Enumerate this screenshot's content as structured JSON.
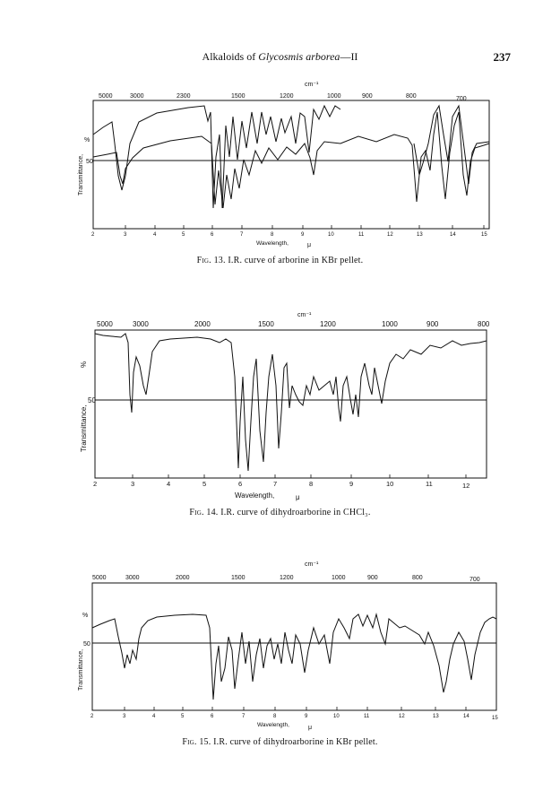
{
  "header": {
    "running_title_prefix": "Alkaloids of ",
    "running_title_italic": "Glycosmis arborea",
    "running_title_suffix": "—II",
    "page_number": "237"
  },
  "figures": [
    {
      "caption_label": "Fig. 13.",
      "caption_text": "I.R. curve of arborine in KBr pellet.",
      "top_unit": "cm⁻¹",
      "wavenumber_ticks": [
        "5000",
        "3000",
        "2300",
        "1500",
        "1200",
        "1000",
        "900",
        "800",
        "700"
      ],
      "wavelength_ticks": [
        "2",
        "3",
        "4",
        "5",
        "6",
        "7",
        "8",
        "9",
        "10",
        "11",
        "12",
        "13",
        "14",
        "15"
      ],
      "y_label": "Transmittance,",
      "y_unit": "%",
      "fifty_label": "50",
      "x_label": "Wavelength,",
      "x_unit": "μ"
    },
    {
      "caption_label": "Fig. 14.",
      "caption_text": "I.R. curve of dihydroarborine in CHCl₃.",
      "top_unit": "cm⁻¹",
      "wavenumber_ticks": [
        "5000",
        "3000",
        "2000",
        "1500",
        "1200",
        "1000",
        "900",
        "800"
      ],
      "wavelength_ticks": [
        "2",
        "3",
        "4",
        "5",
        "6",
        "7",
        "8",
        "9",
        "10",
        "11",
        "12"
      ],
      "y_label": "Transmittance,",
      "y_unit": "%",
      "fifty_label": "50",
      "x_label": "Wavelength,",
      "x_unit": "μ"
    },
    {
      "caption_label": "Fig. 15.",
      "caption_text": "I.R. curve of dihydroarborine in KBr pellet.",
      "top_unit": "cm⁻¹",
      "wavenumber_ticks": [
        "5000",
        "3000",
        "2000",
        "1500",
        "1200",
        "1000",
        "900",
        "800",
        "700"
      ],
      "wavelength_ticks": [
        "2",
        "3",
        "4",
        "5",
        "6",
        "7",
        "8",
        "9",
        "10",
        "11",
        "12",
        "13",
        "14",
        "15"
      ],
      "y_label": "Transmittance,",
      "y_unit": "%",
      "fifty_label": "50",
      "x_label": "Wavelength,",
      "x_unit": "μ"
    }
  ],
  "colors": {
    "ink": "#111111",
    "paper": "#ffffff"
  }
}
